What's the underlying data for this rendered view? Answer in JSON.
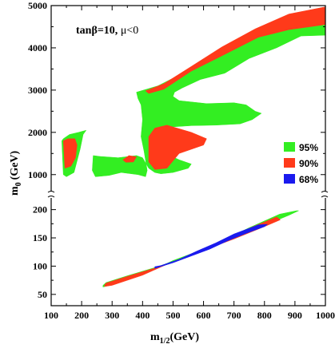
{
  "chart_data": {
    "type": "area",
    "annotation": {
      "prefix": "tanβ=10, ",
      "mu": "μ<0"
    },
    "xlabel": {
      "main": "m",
      "sub": "1/2",
      "unit": "(GeV)"
    },
    "ylabel": {
      "main": "m",
      "sub": "0",
      "unit": "(GeV)"
    },
    "x_range": [
      100,
      1000
    ],
    "x_ticks": [
      100,
      200,
      300,
      400,
      500,
      600,
      700,
      800,
      900,
      1000
    ],
    "y_upper_range": [
      750,
      5000
    ],
    "y_upper_ticks": [
      1000,
      2000,
      3000,
      4000,
      5000
    ],
    "y_lower_range": [
      30,
      215
    ],
    "y_lower_ticks": [
      50,
      100,
      150,
      200
    ],
    "legend": [
      {
        "label": "95%",
        "color": "#33ee22"
      },
      {
        "label": "90%",
        "color": "#ff3a1a"
      },
      {
        "label": "68%",
        "color": "#1a1aee"
      }
    ],
    "regions": [
      {
        "level": "95%",
        "panel": "upper",
        "points": [
          [
            135,
            1800
          ],
          [
            140,
            1000
          ],
          [
            150,
            950
          ],
          [
            175,
            1050
          ],
          [
            195,
            1600
          ],
          [
            205,
            1950
          ],
          [
            215,
            2050
          ],
          [
            190,
            2000
          ],
          [
            160,
            1950
          ],
          [
            140,
            1850
          ]
        ]
      },
      {
        "level": "95%",
        "panel": "upper",
        "points": [
          [
            238,
            1450
          ],
          [
            235,
            1100
          ],
          [
            245,
            950
          ],
          [
            290,
            980
          ],
          [
            330,
            1050
          ],
          [
            385,
            1000
          ],
          [
            410,
            950
          ],
          [
            415,
            1100
          ],
          [
            405,
            1550
          ],
          [
            395,
            1900
          ],
          [
            400,
            2300
          ],
          [
            395,
            2650
          ],
          [
            385,
            2800
          ],
          [
            380,
            2950
          ],
          [
            450,
            3100
          ],
          [
            560,
            3500
          ],
          [
            650,
            3900
          ],
          [
            760,
            4300
          ],
          [
            880,
            4650
          ],
          [
            1000,
            4880
          ],
          [
            1000,
            4300
          ],
          [
            920,
            4280
          ],
          [
            840,
            4000
          ],
          [
            750,
            3750
          ],
          [
            670,
            3400
          ],
          [
            590,
            3250
          ],
          [
            530,
            3050
          ],
          [
            505,
            2950
          ],
          [
            500,
            2850
          ],
          [
            520,
            2750
          ],
          [
            610,
            2680
          ],
          [
            700,
            2700
          ],
          [
            740,
            2650
          ],
          [
            770,
            2500
          ],
          [
            790,
            2450
          ],
          [
            760,
            2300
          ],
          [
            720,
            2200
          ],
          [
            640,
            2170
          ],
          [
            560,
            2160
          ],
          [
            500,
            2130
          ],
          [
            470,
            2000
          ],
          [
            450,
            1750
          ],
          [
            460,
            1550
          ],
          [
            520,
            1350
          ],
          [
            560,
            1250
          ],
          [
            550,
            1150
          ],
          [
            500,
            1050
          ],
          [
            460,
            1020
          ],
          [
            440,
            1050
          ],
          [
            420,
            1150
          ],
          [
            400,
            1400
          ],
          [
            380,
            1450
          ],
          [
            320,
            1400
          ],
          [
            260,
            1430
          ]
        ]
      },
      {
        "level": "90%",
        "panel": "upper",
        "points": [
          [
            140,
            1800
          ],
          [
            145,
            1150
          ],
          [
            165,
            1200
          ],
          [
            180,
            1400
          ],
          [
            185,
            1700
          ],
          [
            178,
            1850
          ],
          [
            155,
            1850
          ]
        ]
      },
      {
        "level": "90%",
        "panel": "upper",
        "points": [
          [
            335,
            1350
          ],
          [
            355,
            1450
          ],
          [
            380,
            1420
          ],
          [
            370,
            1300
          ],
          [
            345,
            1290
          ]
        ]
      },
      {
        "level": "90%",
        "panel": "upper",
        "points": [
          [
            420,
            1300
          ],
          [
            420,
            1900
          ],
          [
            440,
            2100
          ],
          [
            480,
            2170
          ],
          [
            560,
            2000
          ],
          [
            610,
            1850
          ],
          [
            600,
            1700
          ],
          [
            520,
            1500
          ],
          [
            480,
            1150
          ],
          [
            440,
            1120
          ]
        ]
      },
      {
        "level": "90%",
        "panel": "upper",
        "points": [
          [
            410,
            2980
          ],
          [
            470,
            3150
          ],
          [
            560,
            3560
          ],
          [
            660,
            4020
          ],
          [
            770,
            4450
          ],
          [
            880,
            4800
          ],
          [
            1000,
            4970
          ],
          [
            1000,
            4550
          ],
          [
            880,
            4430
          ],
          [
            780,
            4250
          ],
          [
            660,
            3810
          ],
          [
            560,
            3450
          ],
          [
            470,
            3020
          ],
          [
            420,
            2920
          ]
        ]
      },
      {
        "level": "95%",
        "panel": "lower",
        "points": [
          [
            270,
            63
          ],
          [
            300,
            67
          ],
          [
            400,
            85
          ],
          [
            500,
            110
          ],
          [
            600,
            130
          ],
          [
            700,
            150
          ],
          [
            800,
            172
          ],
          [
            880,
            190
          ],
          [
            912,
            198
          ],
          [
            905,
            198
          ],
          [
            850,
            192
          ],
          [
            750,
            168
          ],
          [
            650,
            142
          ],
          [
            550,
            118
          ],
          [
            450,
            99
          ],
          [
            350,
            83
          ],
          [
            280,
            71
          ],
          [
            270,
            66
          ]
        ]
      },
      {
        "level": "90%",
        "panel": "lower",
        "points": [
          [
            275,
            64
          ],
          [
            300,
            66
          ],
          [
            400,
            84
          ],
          [
            500,
            108
          ],
          [
            600,
            128
          ],
          [
            700,
            148
          ],
          [
            800,
            170
          ],
          [
            852,
            182
          ],
          [
            840,
            187
          ],
          [
            750,
            167
          ],
          [
            650,
            140
          ],
          [
            550,
            117
          ],
          [
            450,
            98
          ],
          [
            350,
            82
          ],
          [
            280,
            70
          ],
          [
            275,
            66
          ]
        ]
      },
      {
        "level": "68%",
        "panel": "lower",
        "points": [
          [
            440,
            96
          ],
          [
            500,
            106
          ],
          [
            560,
            118
          ],
          [
            620,
            130
          ],
          [
            680,
            145
          ],
          [
            740,
            158
          ],
          [
            800,
            170
          ],
          [
            810,
            174
          ],
          [
            780,
            173
          ],
          [
            700,
            157
          ],
          [
            640,
            141
          ],
          [
            580,
            127
          ],
          [
            520,
            112
          ],
          [
            460,
            101
          ],
          [
            440,
            99
          ]
        ]
      }
    ]
  }
}
